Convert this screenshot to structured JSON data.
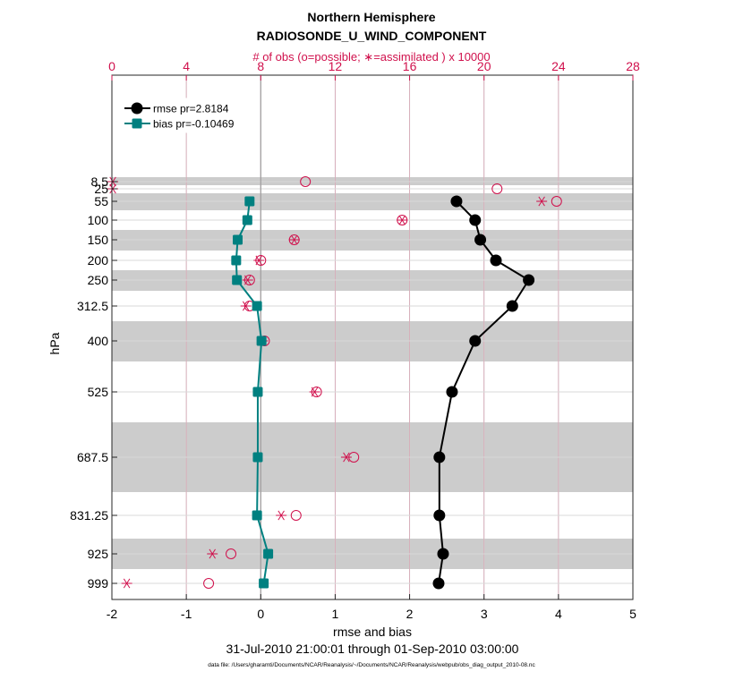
{
  "chart_data": {
    "type": "line",
    "title": "Northern Hemisphere",
    "subtitle": "RADIOSONDE_U_WIND_COMPONENT",
    "top_axis_label": "# of obs (o=possible; ∗=assimilated ) x 10000",
    "xlabel": "rmse and bias",
    "ylabel": "hPa",
    "date_range": "31-Jul-2010 21:00:01 through 01-Sep-2010 03:00:00",
    "footnote": "data file: /Users/gharamti/Documents/NCAR/Reanalysis/~/Documents/NCAR/Reanalysis/webpub/obs_diag_output_2010-08.nc",
    "xlim": [
      -2,
      5
    ],
    "x_ticks": [
      -2,
      -1,
      0,
      1,
      2,
      3,
      4,
      5
    ],
    "x_tick_labels": [
      "-2",
      "-1",
      "0",
      "1",
      "2",
      "3",
      "4",
      "5"
    ],
    "top_xlim": [
      0,
      28
    ],
    "top_ticks": [
      0,
      4,
      8,
      12,
      16,
      20,
      24,
      28
    ],
    "top_tick_labels": [
      "0",
      "4",
      "8",
      "12",
      "16",
      "20",
      "24",
      "28"
    ],
    "levels": [
      8.5,
      25,
      55,
      100,
      150,
      200,
      250,
      312.5,
      400,
      525,
      687.5,
      831.25,
      925,
      999
    ],
    "level_labels": [
      "8.5",
      "25",
      "55",
      "100",
      "150",
      "200",
      "250",
      "312.5",
      "400",
      "525",
      "687.5",
      "831.25",
      "925",
      "999"
    ],
    "grid": true,
    "legend_position": "top-left",
    "series": [
      {
        "name": "rmse pr=2.8184",
        "color": "#000000",
        "marker": "circle",
        "levels": [
          55,
          100,
          150,
          200,
          250,
          312.5,
          400,
          525,
          687.5,
          831.25,
          925,
          999
        ],
        "values": [
          2.63,
          2.88,
          2.95,
          3.16,
          3.6,
          3.38,
          2.88,
          2.57,
          2.4,
          2.4,
          2.45,
          2.39
        ]
      },
      {
        "name": "bias pr=-0.10469",
        "color": "#008080",
        "marker": "square",
        "levels": [
          55,
          100,
          150,
          200,
          250,
          312.5,
          400,
          525,
          687.5,
          831.25,
          925,
          999
        ],
        "values": [
          -0.15,
          -0.18,
          -0.31,
          -0.33,
          -0.32,
          -0.05,
          0.01,
          -0.04,
          -0.04,
          -0.05,
          0.1,
          0.04
        ]
      }
    ],
    "obs_possible": {
      "color": "#d0104c",
      "levels": [
        8.5,
        25,
        55,
        100,
        150,
        200,
        250,
        312.5,
        400,
        525,
        687.5,
        831.25,
        925,
        999
      ],
      "values": [
        10.4,
        20.7,
        23.9,
        15.6,
        9.8,
        8.0,
        7.4,
        7.4,
        8.2,
        11.0,
        13.0,
        9.9,
        6.4,
        5.2
      ]
    },
    "obs_assimilated": {
      "color": "#d0104c",
      "levels": [
        8.5,
        25,
        55,
        100,
        150,
        200,
        250,
        312.5,
        400,
        525,
        687.5,
        831.25,
        925,
        999
      ],
      "values": [
        0.05,
        0.05,
        23.1,
        15.6,
        9.8,
        7.9,
        7.3,
        7.2,
        8.1,
        10.9,
        12.6,
        9.1,
        5.4,
        0.8
      ]
    },
    "colors": {
      "axis_top": "#d0104c",
      "band": "#cccccc",
      "grid": "#d9d9d9",
      "top_grid": "#d7a6b4"
    }
  }
}
